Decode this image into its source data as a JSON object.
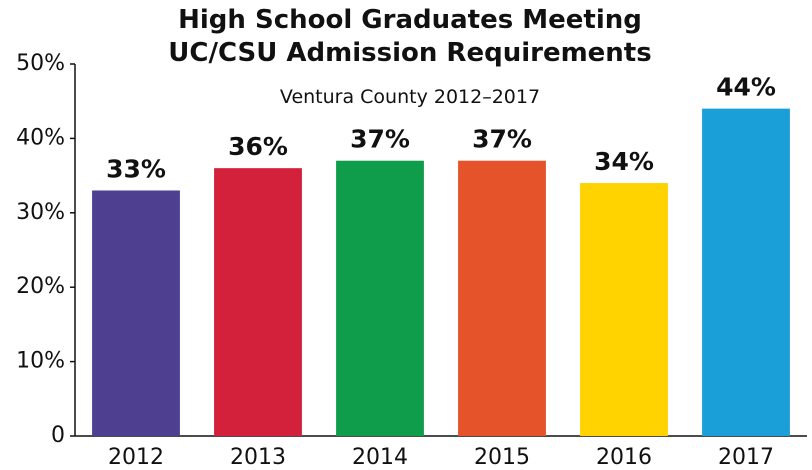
{
  "chart_data": {
    "type": "bar",
    "title": "High School Graduates Meeting UC/CSU Admission Requirements",
    "subtitle": "Ventura County 2012–2017",
    "categories": [
      "2012",
      "2013",
      "2014",
      "2015",
      "2016",
      "2017"
    ],
    "values": [
      33,
      36,
      37,
      37,
      34,
      44
    ],
    "value_labels": [
      "33%",
      "36%",
      "37%",
      "37%",
      "34%",
      "44%"
    ],
    "colors": [
      "#4f3f90",
      "#d3203b",
      "#0f9d4b",
      "#e4532a",
      "#ffd300",
      "#1a9fd9"
    ],
    "ylim": [
      0,
      50
    ],
    "yticks": [
      0,
      {
        "value": 10,
        "label": "10%"
      },
      {
        "value": 20,
        "label": "20%"
      },
      {
        "value": 30,
        "label": "30%"
      },
      {
        "value": 40,
        "label": "40%"
      },
      {
        "value": 50,
        "label": "50%"
      }
    ],
    "grid": false
  }
}
